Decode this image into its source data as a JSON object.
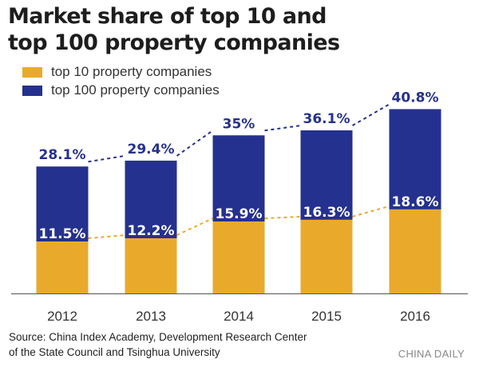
{
  "chart_data": {
    "type": "bar",
    "title_lines": [
      "Market share of top 10 and",
      "top 100 property companies"
    ],
    "categories": [
      "2012",
      "2013",
      "2014",
      "2015",
      "2016"
    ],
    "series": [
      {
        "name": "top 10 property companies",
        "color": "#e9aa2b",
        "values": [
          11.5,
          12.2,
          15.9,
          16.3,
          18.6
        ],
        "labels": [
          "11.5%",
          "12.2%",
          "15.9%",
          "16.3%",
          "18.6%"
        ]
      },
      {
        "name": "top 100 property companies",
        "color": "#25318e",
        "values": [
          28.1,
          29.4,
          35,
          36.1,
          40.8
        ],
        "labels": [
          "28.1%",
          "29.4%",
          "35%",
          "36.1%",
          "40.8%"
        ]
      }
    ],
    "ylim": [
      0,
      45
    ],
    "xlabel": "",
    "ylabel": "",
    "legend_position": "top-left",
    "trend_lines": "dashed"
  },
  "source": [
    "Source: China Index Academy, Development Research Center",
    "of the State Council and Tsinghua University"
  ],
  "credit": "CHINA DAILY"
}
